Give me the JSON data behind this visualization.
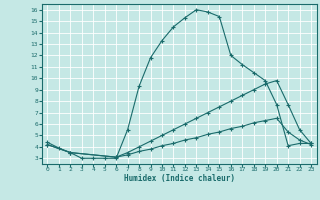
{
  "title": "",
  "xlabel": "Humidex (Indice chaleur)",
  "ylabel": "",
  "xlim": [
    -0.5,
    23.5
  ],
  "ylim": [
    2.5,
    16.5
  ],
  "xticks": [
    0,
    1,
    2,
    3,
    4,
    5,
    6,
    7,
    8,
    9,
    10,
    11,
    12,
    13,
    14,
    15,
    16,
    17,
    18,
    19,
    20,
    21,
    22,
    23
  ],
  "yticks": [
    3,
    4,
    5,
    6,
    7,
    8,
    9,
    10,
    11,
    12,
    13,
    14,
    15,
    16
  ],
  "bg_color": "#c5e8e5",
  "line_color": "#1a6b6b",
  "grid_color": "#aad4d0",
  "line1_x": [
    0,
    1,
    2,
    3,
    4,
    5,
    6,
    7,
    8,
    9,
    10,
    11,
    12,
    13,
    14,
    15,
    16,
    17,
    18,
    19,
    20,
    21,
    22,
    23
  ],
  "line1_y": [
    4.4,
    3.9,
    3.5,
    3.0,
    3.0,
    3.0,
    3.0,
    5.5,
    9.3,
    11.8,
    13.3,
    14.5,
    15.3,
    16.0,
    15.8,
    15.4,
    12.0,
    11.2,
    10.5,
    9.8,
    7.7,
    4.1,
    4.3,
    4.3
  ],
  "line2_x": [
    0,
    2,
    6,
    7,
    8,
    9,
    10,
    11,
    12,
    13,
    14,
    15,
    16,
    17,
    18,
    19,
    20,
    21,
    22,
    23
  ],
  "line2_y": [
    4.2,
    3.5,
    3.1,
    3.5,
    4.0,
    4.5,
    5.0,
    5.5,
    6.0,
    6.5,
    7.0,
    7.5,
    8.0,
    8.5,
    9.0,
    9.5,
    9.8,
    7.7,
    5.5,
    4.3
  ],
  "line3_x": [
    0,
    2,
    6,
    7,
    8,
    9,
    10,
    11,
    12,
    13,
    14,
    15,
    16,
    17,
    18,
    19,
    20,
    21,
    22,
    23
  ],
  "line3_y": [
    4.2,
    3.5,
    3.1,
    3.3,
    3.6,
    3.8,
    4.1,
    4.3,
    4.6,
    4.8,
    5.1,
    5.3,
    5.6,
    5.8,
    6.1,
    6.3,
    6.5,
    5.3,
    4.6,
    4.2
  ]
}
